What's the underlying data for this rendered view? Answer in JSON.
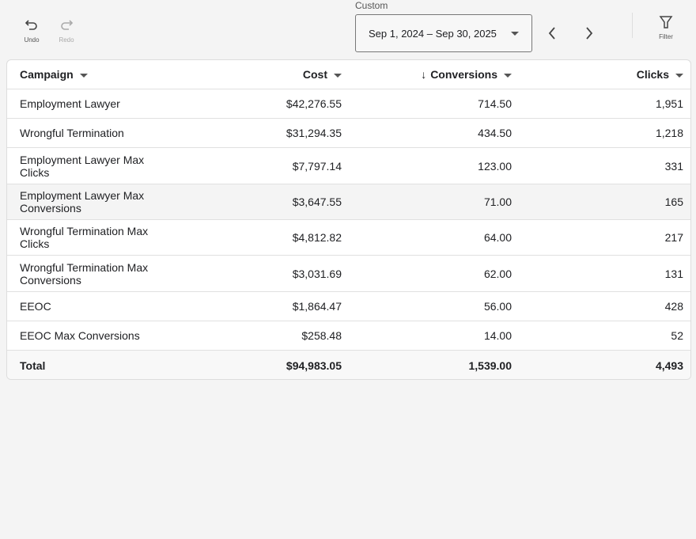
{
  "toolbar": {
    "undo": "Undo",
    "redo": "Redo",
    "filter": "Filter"
  },
  "date": {
    "label": "Custom",
    "range": "Sep 1, 2024 – Sep 30, 2025"
  },
  "table": {
    "headers": [
      "Campaign",
      "Cost",
      "Conversions",
      "Clicks"
    ],
    "sorted_column": "Conversions",
    "rows": [
      {
        "campaign": "Employment Lawyer",
        "cost": "$42,276.55",
        "conversions": "714.50",
        "clicks": "1,951"
      },
      {
        "campaign": "Wrongful Termination",
        "cost": "$31,294.35",
        "conversions": "434.50",
        "clicks": "1,218"
      },
      {
        "campaign": "Employment Lawyer Max Clicks",
        "cost": "$7,797.14",
        "conversions": "123.00",
        "clicks": "331"
      },
      {
        "campaign": "Employment Lawyer Max Conversions",
        "cost": "$3,647.55",
        "conversions": "71.00",
        "clicks": "165"
      },
      {
        "campaign": "Wrongful Termination Max Clicks",
        "cost": "$4,812.82",
        "conversions": "64.00",
        "clicks": "217"
      },
      {
        "campaign": "Wrongful Termination Max Conversions",
        "cost": "$3,031.69",
        "conversions": "62.00",
        "clicks": "131"
      },
      {
        "campaign": "EEOC",
        "cost": "$1,864.47",
        "conversions": "56.00",
        "clicks": "428"
      },
      {
        "campaign": "EEOC Max Conversions",
        "cost": "$258.48",
        "conversions": "14.00",
        "clicks": "52"
      }
    ],
    "total": {
      "label": "Total",
      "cost": "$94,983.05",
      "conversions": "1,539.00",
      "clicks": "4,493"
    }
  }
}
